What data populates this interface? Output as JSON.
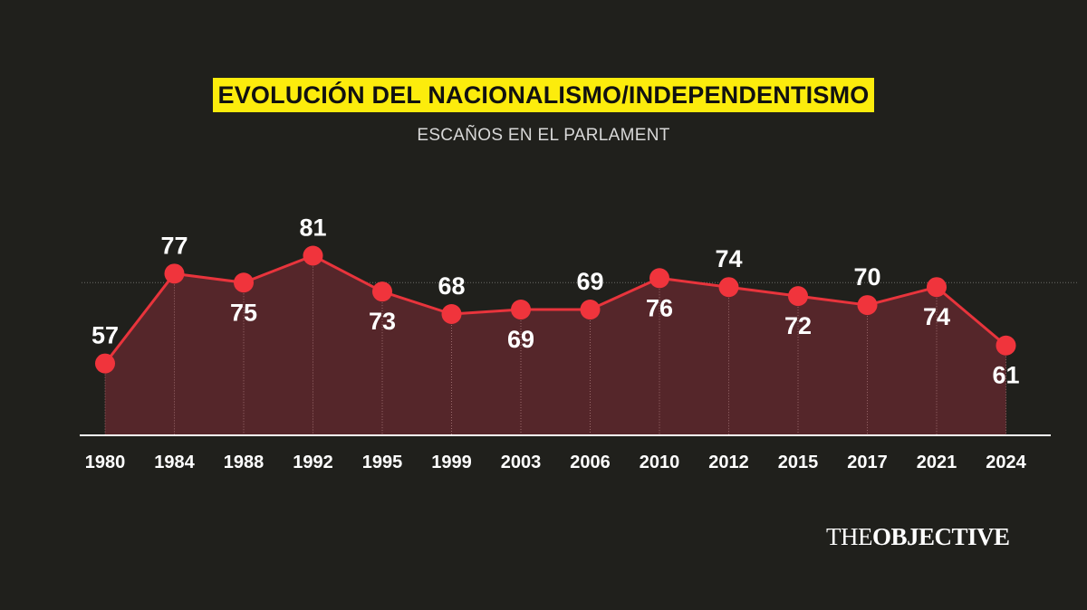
{
  "header": {
    "title": "EVOLUCIÓN DEL NACIONALISMO/INDEPENDENTISMO",
    "subtitle": "ESCAÑOS EN EL PARLAMENT"
  },
  "logo": {
    "light": "THE",
    "bold": "OBJECTIVE"
  },
  "colors": {
    "background": "#20201c",
    "line": "#e8343c",
    "marker": "#f0343c",
    "area": "#55262a",
    "title_bg": "#fcec0c",
    "reference_line": "#6a6a66"
  },
  "chart_data": {
    "type": "line",
    "title": "EVOLUCIÓN DEL NACIONALISMO/INDEPENDENTISMO",
    "subtitle": "ESCAÑOS EN EL PARLAMENT",
    "x": [
      "1980",
      "1984",
      "1988",
      "1992",
      "1995",
      "1999",
      "2003",
      "2006",
      "2010",
      "2012",
      "2015",
      "2017",
      "2021",
      "2024"
    ],
    "series": [
      {
        "values": [
          57,
          77,
          75,
          81,
          73,
          68,
          69,
          69,
          76,
          74,
          72,
          70,
          74,
          61
        ]
      }
    ],
    "label_position": [
      "above",
      "above",
      "below",
      "above",
      "below",
      "above",
      "below",
      "above",
      "below",
      "above",
      "below",
      "above",
      "below",
      "below"
    ],
    "reference_line": 75,
    "ylim": [
      41,
      95
    ],
    "grid": false,
    "area_fill": true
  }
}
